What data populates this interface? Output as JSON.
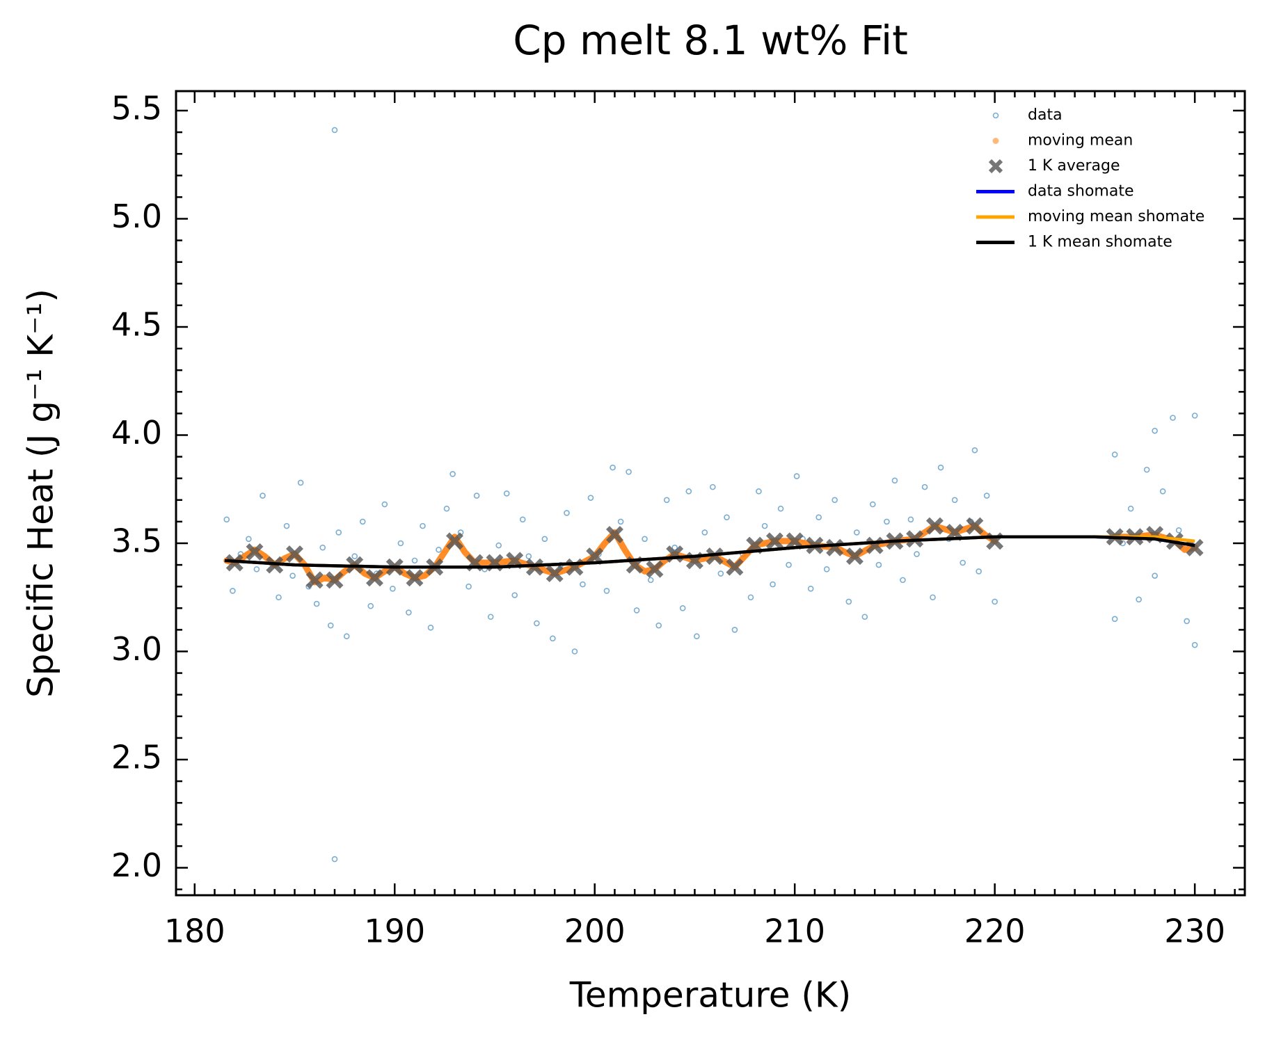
{
  "chart_data": {
    "type": "scatter",
    "title": "Cp melt 8.1 wt% Fit",
    "xlabel": "Temperature (K)",
    "ylabel": "Specific Heat (J g⁻¹ K⁻¹)",
    "xlim": [
      179.07,
      232.5
    ],
    "ylim": [
      1.873,
      5.59
    ],
    "xticks": [
      180,
      190,
      200,
      210,
      220,
      230
    ],
    "yticks": [
      {
        "value": 2.0,
        "label": "2.0"
      },
      2.5,
      {
        "value": 3.0,
        "label": "3.0"
      },
      3.5,
      {
        "value": 4.0,
        "label": "4.0"
      },
      4.5,
      {
        "value": 5.0,
        "label": "5.0"
      },
      5.5
    ],
    "minor_xticks": [
      181,
      182,
      183,
      184,
      185,
      186,
      187,
      188,
      189,
      191,
      192,
      193,
      194,
      195,
      196,
      197,
      198,
      199,
      201,
      202,
      203,
      204,
      205,
      206,
      207,
      208,
      209,
      211,
      212,
      213,
      214,
      215,
      216,
      217,
      218,
      219,
      221,
      222,
      223,
      224,
      225,
      226,
      227,
      228,
      229,
      231,
      232
    ],
    "minor_yticks": [
      1.9,
      2.1,
      2.2,
      2.3,
      2.4,
      2.6,
      2.7,
      2.8,
      2.9,
      3.1,
      3.2,
      3.3,
      3.4,
      3.6,
      3.7,
      3.8,
      3.9,
      4.1,
      4.2,
      4.3,
      4.4,
      4.6,
      4.7,
      4.8,
      4.9,
      5.1,
      5.2,
      5.3,
      5.4
    ],
    "legend": "upper right",
    "series": [
      {
        "name": "data",
        "style": "open-points",
        "color": "#1f77b4",
        "x": [
          181.6,
          181.9,
          182.3,
          182.7,
          183.1,
          183.4,
          183.8,
          184.2,
          184.6,
          184.9,
          185.3,
          185.7,
          186.1,
          186.4,
          186.8,
          187.0,
          187.0,
          187.2,
          187.6,
          188.0,
          188.4,
          188.8,
          189.1,
          189.5,
          189.9,
          190.3,
          190.7,
          191.0,
          191.4,
          191.8,
          192.2,
          192.6,
          192.9,
          193.3,
          193.7,
          194.1,
          194.5,
          194.8,
          195.2,
          195.6,
          196.0,
          196.4,
          196.7,
          197.1,
          197.5,
          197.9,
          198.3,
          198.6,
          199.0,
          199.4,
          199.8,
          200.2,
          200.6,
          200.9,
          201.3,
          201.7,
          202.1,
          202.5,
          202.8,
          203.2,
          203.6,
          204.0,
          204.4,
          204.7,
          205.1,
          205.5,
          205.9,
          206.3,
          206.6,
          207.0,
          207.4,
          207.8,
          208.2,
          208.5,
          208.9,
          209.3,
          209.7,
          210.1,
          210.4,
          210.8,
          211.2,
          211.6,
          212.0,
          212.3,
          212.7,
          213.1,
          213.5,
          213.9,
          214.2,
          214.6,
          215.0,
          215.4,
          215.8,
          216.1,
          216.5,
          216.9,
          217.3,
          217.7,
          218.0,
          218.4,
          218.8,
          219.0,
          219.2,
          219.6,
          220.0,
          226.0,
          226.0,
          226.4,
          226.8,
          227.2,
          227.6,
          228.0,
          228.0,
          228.4,
          228.9,
          229.2,
          229.6,
          230.0,
          230.0
        ],
        "values": [
          3.61,
          3.28,
          3.45,
          3.52,
          3.38,
          3.72,
          3.41,
          3.25,
          3.58,
          3.35,
          3.78,
          3.3,
          3.22,
          3.48,
          3.12,
          5.41,
          2.04,
          3.55,
          3.07,
          3.44,
          3.6,
          3.21,
          3.36,
          3.68,
          3.29,
          3.5,
          3.18,
          3.42,
          3.58,
          3.11,
          3.47,
          3.66,
          3.82,
          3.55,
          3.3,
          3.72,
          3.38,
          3.16,
          3.49,
          3.73,
          3.26,
          3.61,
          3.44,
          3.13,
          3.52,
          3.06,
          3.4,
          3.64,
          3.0,
          3.31,
          3.71,
          3.45,
          3.28,
          3.85,
          3.6,
          3.83,
          3.19,
          3.52,
          3.33,
          3.12,
          3.7,
          3.48,
          3.2,
          3.74,
          3.07,
          3.55,
          3.76,
          3.36,
          3.62,
          3.1,
          3.45,
          3.25,
          3.74,
          3.58,
          3.31,
          3.66,
          3.4,
          3.81,
          3.52,
          3.29,
          3.62,
          3.38,
          3.7,
          3.47,
          3.23,
          3.55,
          3.16,
          3.68,
          3.4,
          3.6,
          3.79,
          3.33,
          3.61,
          3.45,
          3.76,
          3.25,
          3.85,
          3.52,
          3.7,
          3.41,
          3.6,
          3.93,
          3.37,
          3.72,
          3.23,
          3.91,
          3.15,
          3.5,
          3.66,
          3.24,
          3.84,
          4.02,
          3.35,
          3.74,
          4.08,
          3.56,
          3.14,
          4.09,
          3.03
        ]
      },
      {
        "name": "moving mean",
        "style": "dots",
        "color": "#ff7f0e",
        "x": [
          181.6,
          182,
          182.5,
          183,
          183.5,
          184,
          184.5,
          185,
          185.5,
          186,
          186.5,
          187,
          187.5,
          188,
          188.5,
          189,
          189.5,
          190,
          190.5,
          191,
          191.5,
          192,
          192.5,
          193,
          193.5,
          194,
          195,
          196,
          197,
          198,
          199,
          200,
          200.5,
          201,
          201.5,
          202,
          202.5,
          203,
          203.5,
          204,
          205,
          206,
          207,
          207.5,
          208,
          209,
          210,
          211,
          212,
          213,
          214,
          215,
          216,
          217,
          218,
          219,
          219.5,
          220,
          223,
          226,
          227,
          228,
          229,
          229.5,
          230
        ],
        "values": [
          3.42,
          3.41,
          3.44,
          3.47,
          3.44,
          3.4,
          3.43,
          3.45,
          3.4,
          3.32,
          3.34,
          3.33,
          3.37,
          3.4,
          3.36,
          3.34,
          3.37,
          3.39,
          3.36,
          3.34,
          3.35,
          3.39,
          3.46,
          3.53,
          3.46,
          3.41,
          3.41,
          3.42,
          3.39,
          3.36,
          3.39,
          3.44,
          3.5,
          3.55,
          3.47,
          3.4,
          3.37,
          3.38,
          3.42,
          3.45,
          3.42,
          3.44,
          3.39,
          3.44,
          3.49,
          3.51,
          3.51,
          3.49,
          3.48,
          3.44,
          3.49,
          3.51,
          3.52,
          3.58,
          3.55,
          3.58,
          3.54,
          3.51,
          null,
          3.53,
          3.53,
          3.54,
          3.51,
          3.47,
          3.48
        ]
      },
      {
        "name": "1 K average",
        "style": "cross",
        "color": "#555555",
        "x": [
          182,
          183,
          184,
          185,
          186,
          187,
          188,
          189,
          190,
          191,
          192,
          193,
          194,
          195,
          196,
          197,
          198,
          199,
          200,
          201,
          202,
          203,
          204,
          205,
          206,
          207,
          208,
          209,
          210,
          211,
          212,
          213,
          214,
          215,
          216,
          217,
          218,
          219,
          220,
          226,
          227,
          228,
          229,
          230
        ],
        "values": [
          3.41,
          3.46,
          3.4,
          3.45,
          3.33,
          3.33,
          3.4,
          3.34,
          3.39,
          3.34,
          3.39,
          3.51,
          3.41,
          3.41,
          3.42,
          3.39,
          3.36,
          3.39,
          3.44,
          3.54,
          3.4,
          3.38,
          3.45,
          3.42,
          3.44,
          3.39,
          3.49,
          3.51,
          3.51,
          3.49,
          3.48,
          3.44,
          3.49,
          3.51,
          3.52,
          3.58,
          3.55,
          3.58,
          3.51,
          3.53,
          3.53,
          3.54,
          3.51,
          3.48
        ]
      },
      {
        "name": "data shomate",
        "style": "line",
        "color": "#0000ff",
        "x": [
          181.5,
          185,
          190,
          195,
          200,
          205,
          210,
          215,
          220,
          225,
          228,
          230
        ],
        "values": [
          3.42,
          3.4,
          3.39,
          3.39,
          3.41,
          3.44,
          3.48,
          3.51,
          3.53,
          3.53,
          3.52,
          3.49
        ]
      },
      {
        "name": "moving mean shomate",
        "style": "line",
        "color": "#ffa500",
        "x": [
          181.5,
          185,
          190,
          195,
          200,
          205,
          210,
          215,
          220,
          225,
          228,
          230
        ],
        "values": [
          3.42,
          3.4,
          3.39,
          3.39,
          3.41,
          3.44,
          3.48,
          3.51,
          3.53,
          3.53,
          3.53,
          3.51
        ]
      },
      {
        "name": "1 K mean shomate",
        "style": "line",
        "color": "#000000",
        "x": [
          181.5,
          185,
          190,
          195,
          200,
          205,
          210,
          215,
          220,
          225,
          228,
          230
        ],
        "values": [
          3.42,
          3.4,
          3.39,
          3.39,
          3.41,
          3.44,
          3.48,
          3.51,
          3.53,
          3.53,
          3.52,
          3.49
        ]
      }
    ]
  }
}
